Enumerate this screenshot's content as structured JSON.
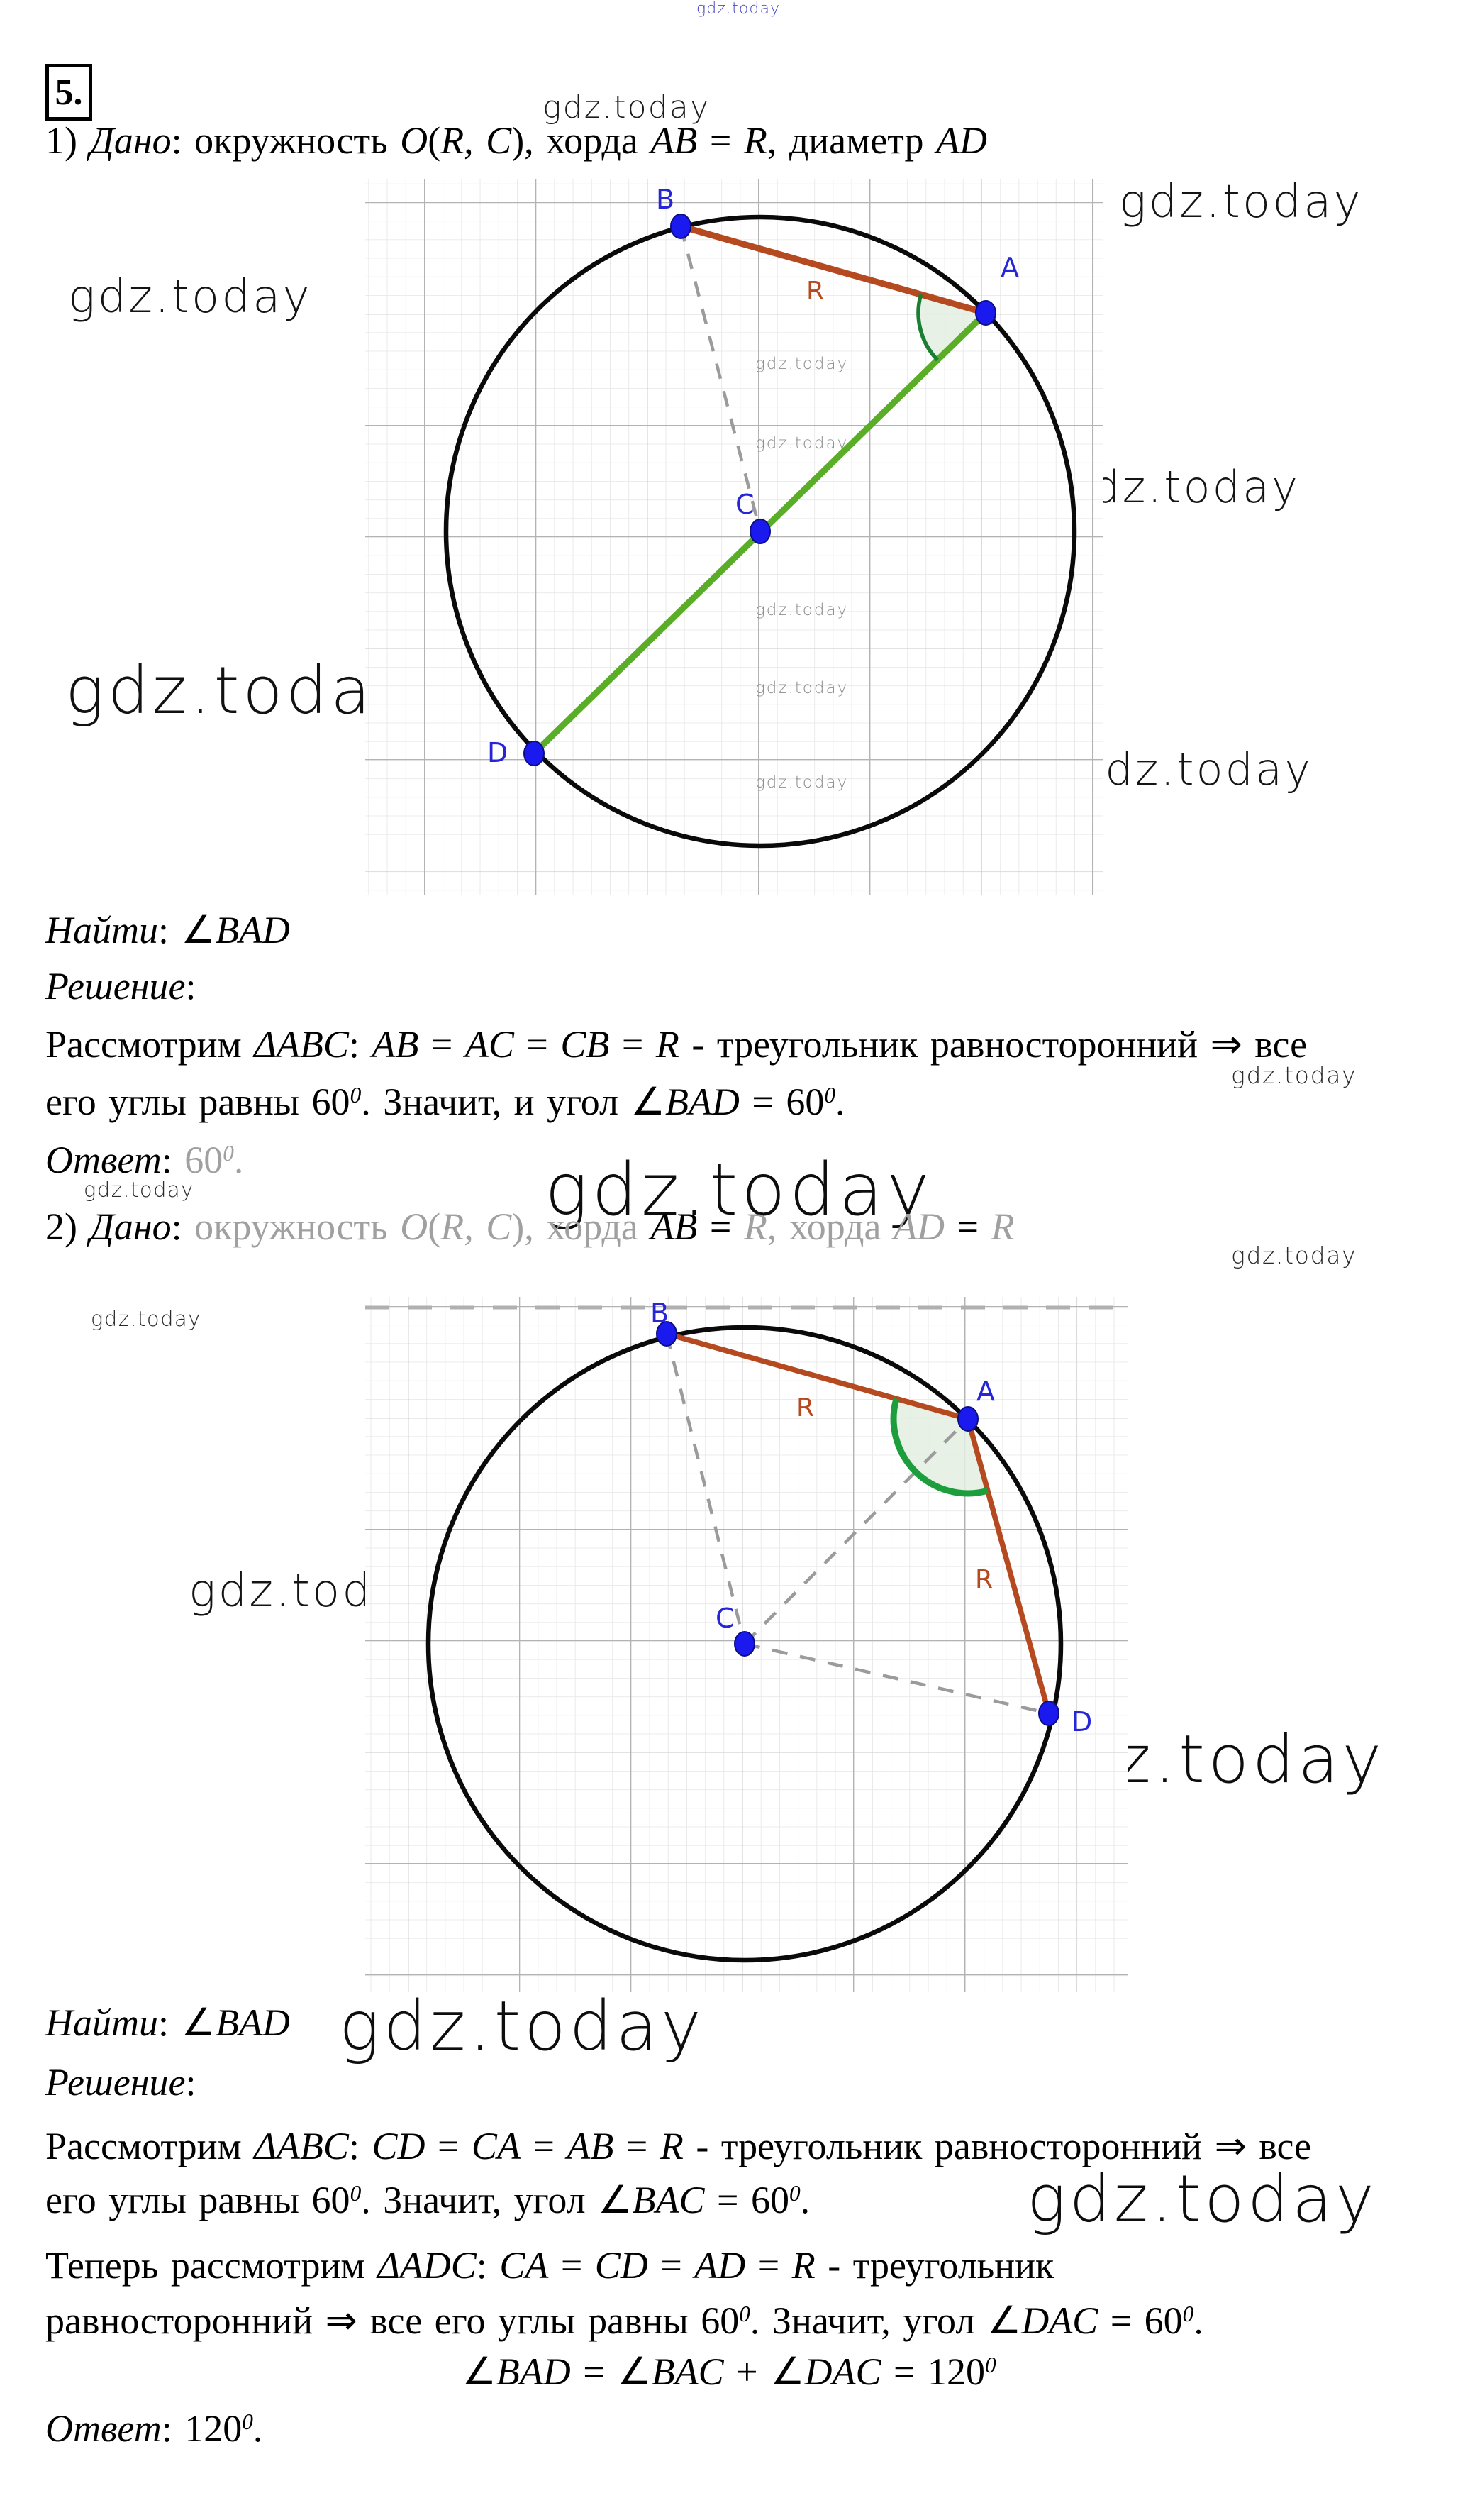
{
  "watermark": "gdz.today",
  "page": {
    "problem_number": "5."
  },
  "colors": {
    "chord_red": "#b5491f",
    "diameter_green": "#5aad27",
    "arc_dark_green": "#1b7e33",
    "angle_fill": "#e3eee2",
    "point_blue": "#1a1aee",
    "label_blue": "#2626d8",
    "grid_minor": "#e6e6e6",
    "grid_major": "#b3b3b3"
  },
  "lines": {
    "given1": [
      [
        "1) ",
        "r"
      ],
      [
        "Дано",
        "i"
      ],
      [
        ": окружность ",
        "r"
      ],
      [
        "O",
        "i"
      ],
      [
        "(",
        "r"
      ],
      [
        "R, C",
        "i"
      ],
      [
        "), хорда ",
        "r"
      ],
      [
        "AB",
        "i"
      ],
      [
        " = ",
        "r"
      ],
      [
        "R",
        "i"
      ],
      [
        ", диаметр ",
        "r"
      ],
      [
        "AD",
        "i"
      ]
    ],
    "find1": [
      [
        "Найти",
        "i"
      ],
      [
        ": ",
        "r"
      ],
      [
        "∠",
        "a"
      ],
      [
        "BAD",
        "i"
      ]
    ],
    "solution1": [
      [
        "Решение",
        "i"
      ],
      [
        ":",
        "r"
      ]
    ],
    "p1_body1": [
      [
        "Рассмотрим ",
        "r"
      ],
      [
        "ΔABC",
        "i"
      ],
      [
        ": ",
        "r"
      ],
      [
        "AB",
        "i"
      ],
      [
        " = ",
        "r"
      ],
      [
        "AC",
        "i"
      ],
      [
        " = ",
        "r"
      ],
      [
        "CB",
        "i"
      ],
      [
        " = ",
        "r"
      ],
      [
        "R",
        "i"
      ],
      [
        " - треугольник равносторонний ",
        "r"
      ],
      [
        "⇒",
        "a"
      ],
      [
        " все",
        "r"
      ]
    ],
    "p1_body2": [
      [
        "его углы равны 60",
        "r"
      ],
      [
        "0",
        "s"
      ],
      [
        ". Значит, и угол ",
        "r"
      ],
      [
        "∠",
        "a"
      ],
      [
        "BAD",
        "i"
      ],
      [
        " = 60",
        "r"
      ],
      [
        "0",
        "s"
      ],
      [
        ".",
        "r"
      ]
    ],
    "answer1": [
      [
        "Ответ",
        "i"
      ],
      [
        ": ",
        "r"
      ],
      [
        "60",
        "f"
      ],
      [
        "0",
        "fs"
      ],
      [
        ".",
        "f"
      ]
    ],
    "given2": [
      [
        "2) ",
        "r"
      ],
      [
        "Дано",
        "i"
      ],
      [
        ": ",
        "r"
      ],
      [
        "окружность ",
        "f"
      ],
      [
        "O",
        "fi"
      ],
      [
        "(",
        "f"
      ],
      [
        "R, C",
        "fi"
      ],
      [
        "), хорда ",
        "f"
      ],
      [
        "AB",
        "i"
      ],
      [
        " = ",
        "r"
      ],
      [
        "R",
        "fi"
      ],
      [
        ", хорда ",
        "f"
      ],
      [
        "AD",
        "fi"
      ],
      [
        " = ",
        "r"
      ],
      [
        "R",
        "fi"
      ]
    ],
    "find2": [
      [
        "Найти",
        "i"
      ],
      [
        ": ",
        "r"
      ],
      [
        "∠",
        "a"
      ],
      [
        "BAD",
        "i"
      ]
    ],
    "solution2": [
      [
        "Решение",
        "i"
      ],
      [
        ":",
        "r"
      ]
    ],
    "p2_body1": [
      [
        "Рассмотрим ",
        "r"
      ],
      [
        "ΔABC",
        "i"
      ],
      [
        ": ",
        "r"
      ],
      [
        "CD",
        "i"
      ],
      [
        " = ",
        "r"
      ],
      [
        "CA",
        "i"
      ],
      [
        " = ",
        "r"
      ],
      [
        "AB",
        "i"
      ],
      [
        " = ",
        "r"
      ],
      [
        "R",
        "i"
      ],
      [
        " - треугольник равносторонний ",
        "r"
      ],
      [
        "⇒",
        "a"
      ],
      [
        " все",
        "r"
      ]
    ],
    "p2_body2": [
      [
        "его углы равны 60",
        "r"
      ],
      [
        "0",
        "s"
      ],
      [
        ". Значит, угол ",
        "r"
      ],
      [
        "∠",
        "a"
      ],
      [
        "BAC",
        "i"
      ],
      [
        " = 60",
        "r"
      ],
      [
        "0",
        "s"
      ],
      [
        ".",
        "r"
      ]
    ],
    "p2_body3": [
      [
        "Теперь рассмотрим ",
        "r"
      ],
      [
        "ΔADC",
        "i"
      ],
      [
        ": ",
        "r"
      ],
      [
        "CA",
        "i"
      ],
      [
        " = ",
        "r"
      ],
      [
        "CD",
        "i"
      ],
      [
        " = ",
        "r"
      ],
      [
        "AD",
        "i"
      ],
      [
        " = ",
        "r"
      ],
      [
        "R",
        "i"
      ],
      [
        " - треугольник",
        "r"
      ]
    ],
    "p2_body4": [
      [
        "равносторонний ",
        "r"
      ],
      [
        "⇒",
        "a"
      ],
      [
        " все его углы равны 60",
        "r"
      ],
      [
        "0",
        "s"
      ],
      [
        ". Значит, угол ",
        "r"
      ],
      [
        "∠",
        "a"
      ],
      [
        "DAC",
        "i"
      ],
      [
        " = 60",
        "r"
      ],
      [
        "0",
        "s"
      ],
      [
        ".",
        "r"
      ]
    ],
    "p2_formula": [
      [
        "∠",
        "a"
      ],
      [
        "BAD",
        "i"
      ],
      [
        " = ",
        "r"
      ],
      [
        "∠",
        "a"
      ],
      [
        "BAC",
        "i"
      ],
      [
        " + ",
        "r"
      ],
      [
        "∠",
        "a"
      ],
      [
        "DAC",
        "i"
      ],
      [
        " = 120",
        "r"
      ],
      [
        "0",
        "s"
      ]
    ],
    "answer2": [
      [
        "Ответ",
        "i"
      ],
      [
        ": 120",
        "r"
      ],
      [
        "0",
        "s"
      ],
      [
        ".",
        "r"
      ]
    ]
  },
  "diagram1": {
    "labels": {
      "A": "A",
      "B": "B",
      "C": "C",
      "D": "D",
      "R": "R"
    }
  },
  "diagram2": {
    "labels": {
      "A": "A",
      "B": "B",
      "C": "C",
      "D": "D",
      "R1": "R",
      "R2": "R"
    }
  }
}
